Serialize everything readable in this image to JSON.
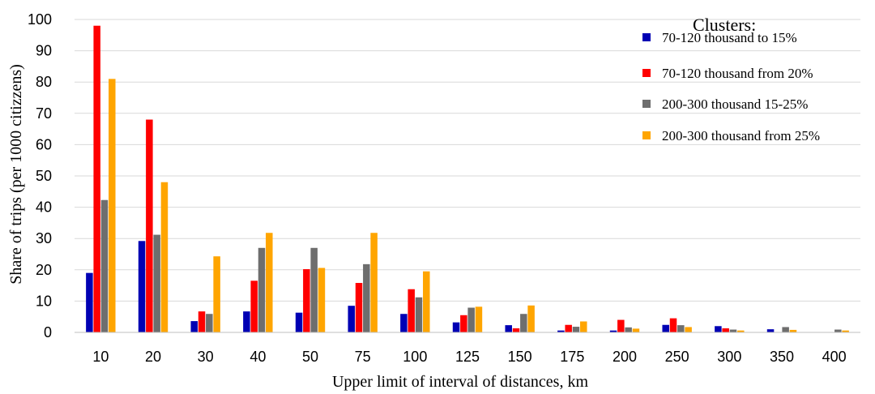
{
  "chart_data": {
    "type": "bar",
    "title": "",
    "xlabel": "Upper limit of interval of distances, km",
    "ylabel": "Share of trips (per 1000 citizzens)",
    "ylim": [
      0,
      100
    ],
    "yticks": [
      0,
      10,
      20,
      30,
      40,
      50,
      60,
      70,
      80,
      90,
      100
    ],
    "grid": true,
    "legend_title": "Clusters:",
    "legend_position": "top-right",
    "categories": [
      "10",
      "20",
      "30",
      "40",
      "50",
      "75",
      "100",
      "125",
      "150",
      "175",
      "200",
      "250",
      "300",
      "350",
      "400"
    ],
    "series": [
      {
        "name": "70-120 thousand to 15%",
        "color": "#0000b4",
        "values": [
          19,
          29.2,
          3.6,
          6.7,
          6.3,
          8.5,
          5.9,
          3.2,
          2.3,
          0.6,
          0.6,
          2.4,
          2.0,
          1.0,
          0
        ]
      },
      {
        "name": "70-120 thousand from 20%",
        "color": "#ff0000",
        "values": [
          98,
          68,
          6.7,
          16.5,
          20.2,
          15.8,
          13.8,
          5.5,
          1.3,
          2.4,
          4.0,
          4.5,
          1.3,
          0,
          0
        ]
      },
      {
        "name": "200-300 thousand 15-25%",
        "color": "#6e6e6e",
        "values": [
          42.3,
          31.2,
          5.9,
          27,
          27,
          21.8,
          11.2,
          7.9,
          5.9,
          1.8,
          1.6,
          2.3,
          0.9,
          1.7,
          0.9
        ]
      },
      {
        "name": "200-300 thousand from 25%",
        "color": "#ffa500",
        "values": [
          81,
          48,
          24.3,
          31.8,
          20.6,
          31.8,
          19.5,
          8.2,
          8.6,
          3.5,
          1.2,
          1.7,
          0.6,
          0.8,
          0.6
        ]
      }
    ]
  }
}
